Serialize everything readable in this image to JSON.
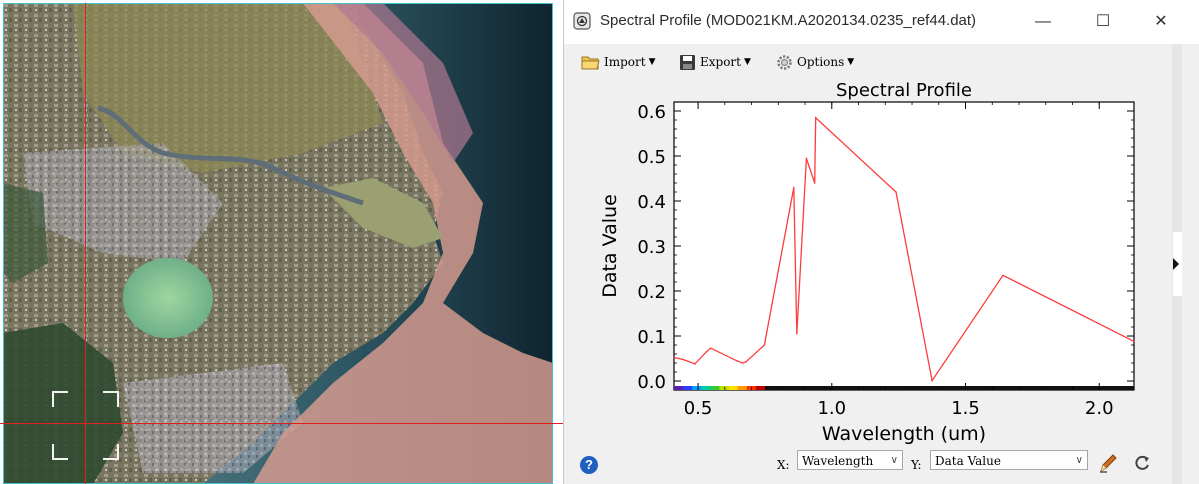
{
  "window": {
    "title": "Spectral Profile (MOD021KM.A2020134.0235_ref44.dat)",
    "minimize_glyph": "—",
    "maximize_glyph": "☐",
    "close_glyph": "✕"
  },
  "toolbar": {
    "import_label": "Import",
    "export_label": "Export",
    "options_label": "Options"
  },
  "bottombar": {
    "x_label": "X:",
    "x_value": "Wavelength",
    "y_label": "Y:",
    "y_value": "Data Value",
    "help_glyph": "?"
  },
  "colors": {
    "accent": "#e02020",
    "series": "#ff3b3b",
    "image_border": "#3cc6c8"
  },
  "chart_data": {
    "type": "line",
    "title": "Spectral Profile",
    "xlabel": "Wavelength (um)",
    "ylabel": "Data Value",
    "xlim": [
      0.41,
      2.13
    ],
    "ylim": [
      -0.02,
      0.62
    ],
    "x_ticks": [
      0.5,
      1.0,
      1.5,
      2.0
    ],
    "x_tick_labels": [
      "0.5",
      "1.0",
      "1.5",
      "2.0"
    ],
    "y_ticks": [
      0.0,
      0.1,
      0.2,
      0.3,
      0.4,
      0.5,
      0.6
    ],
    "y_tick_labels": [
      "0.0",
      "0.1",
      "0.2",
      "0.3",
      "0.4",
      "0.5",
      "0.6"
    ],
    "series": [
      {
        "x": [
          0.412,
          0.443,
          0.488,
          0.531,
          0.547,
          0.645,
          0.667,
          0.678,
          0.748,
          0.858,
          0.869,
          0.905,
          0.936,
          0.94,
          1.24,
          1.375,
          1.64,
          2.13
        ],
        "y": [
          0.052,
          0.048,
          0.038,
          0.065,
          0.073,
          0.045,
          0.04,
          0.042,
          0.08,
          0.43,
          0.105,
          0.495,
          0.44,
          0.585,
          0.42,
          0.001,
          0.235,
          0.088
        ]
      }
    ]
  }
}
